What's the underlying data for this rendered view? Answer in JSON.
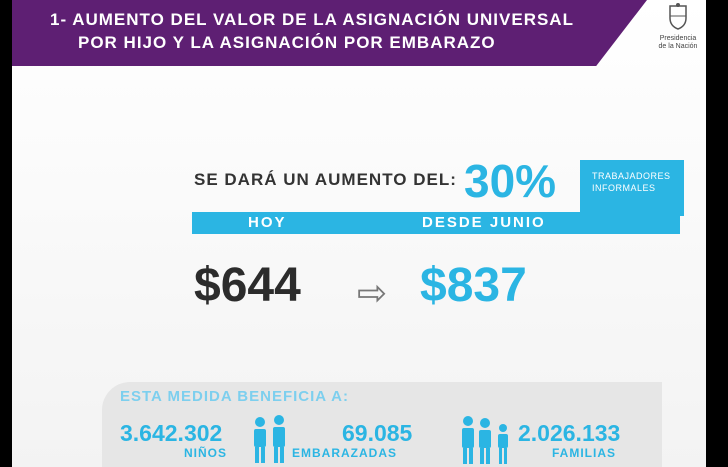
{
  "header": {
    "line1": "1- AUMENTO DEL VALOR DE LA ASIGNACIÓN UNIVERSAL",
    "line2": "POR HIJO Y LA ASIGNACIÓN POR EMBARAZO",
    "crest_label_1": "Presidencia",
    "crest_label_2": "de la Nación"
  },
  "aumento": {
    "label": "SE DARÁ UN AUMENTO DEL:",
    "percent": "30%",
    "box_line1": "TRABAJADORES",
    "box_line2": "INFORMALES"
  },
  "bar": {
    "left": "HOY",
    "right": "DESDE JUNIO"
  },
  "prices": {
    "old": "$644",
    "new": "$837"
  },
  "benefit": {
    "title": "ESTA MEDIDA BENEFICIA A:",
    "ninos_value": "3.642.302",
    "ninos_label": "NIÑOS",
    "embarazadas_value": "69.085",
    "embarazadas_label": "EMBARAZADAS",
    "familias_value": "2.026.133",
    "familias_label": "FAMILIAS"
  },
  "colors": {
    "purple": "#5e1f73",
    "cyan": "#2bb5e3"
  },
  "icons": [
    "crest-icon",
    "arrow-right-icon",
    "children-icon",
    "family-icon"
  ]
}
